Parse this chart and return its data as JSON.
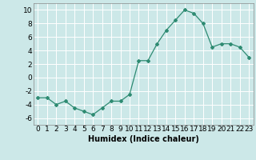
{
  "x": [
    0,
    1,
    2,
    3,
    4,
    5,
    6,
    7,
    8,
    9,
    10,
    11,
    12,
    13,
    14,
    15,
    16,
    17,
    18,
    19,
    20,
    21,
    22,
    23
  ],
  "y": [
    -3,
    -3,
    -4,
    -3.5,
    -4.5,
    -5,
    -5.5,
    -4.5,
    -3.5,
    -3.5,
    -2.5,
    2.5,
    2.5,
    5,
    7,
    8.5,
    10,
    9.5,
    8,
    4.5,
    5,
    5,
    4.5,
    3
  ],
  "line_color": "#2e8b72",
  "marker": "D",
  "marker_size": 2,
  "bg_color": "#cce8e8",
  "grid_color": "#ffffff",
  "xlabel": "Humidex (Indice chaleur)",
  "xlim": [
    -0.5,
    23.5
  ],
  "ylim": [
    -7,
    11
  ],
  "yticks": [
    -6,
    -4,
    -2,
    0,
    2,
    4,
    6,
    8,
    10
  ],
  "xticks": [
    0,
    1,
    2,
    3,
    4,
    5,
    6,
    7,
    8,
    9,
    10,
    11,
    12,
    13,
    14,
    15,
    16,
    17,
    18,
    19,
    20,
    21,
    22,
    23
  ],
  "xlabel_fontsize": 7,
  "tick_fontsize": 6.5
}
